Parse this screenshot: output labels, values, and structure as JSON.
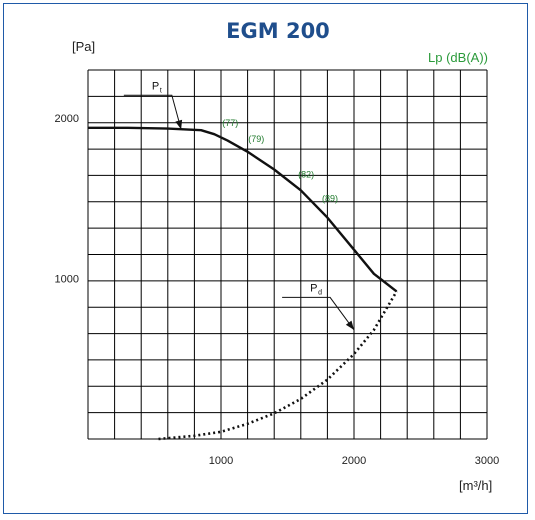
{
  "chart_data": {
    "type": "line",
    "title": "EGM 200",
    "ylabel": "[Pa]",
    "xlabel": "[m³/h]",
    "secondary_label": "Lp (dB(A))",
    "xlim": [
      0,
      3000
    ],
    "ylim": [
      0,
      2300
    ],
    "grid": true,
    "x_ticks": [
      {
        "value": 1000,
        "label": "1000"
      },
      {
        "value": 2000,
        "label": "2000"
      },
      {
        "value": 3000,
        "label": "3000"
      }
    ],
    "y_ticks": [
      {
        "value": 1000,
        "label": "1000"
      },
      {
        "value": 2000,
        "label": "2000"
      }
    ],
    "series": [
      {
        "name": "Pt",
        "style": "solid",
        "x": [
          0,
          300,
          600,
          850,
          950,
          1050,
          1200,
          1400,
          1600,
          1800,
          2000,
          2150,
          2320
        ],
        "y": [
          1940,
          1940,
          1935,
          1925,
          1900,
          1860,
          1790,
          1680,
          1550,
          1380,
          1180,
          1030,
          920
        ]
      },
      {
        "name": "Pd",
        "style": "dotted",
        "x": [
          530,
          800,
          1000,
          1200,
          1400,
          1600,
          1800,
          2000,
          2150,
          2320
        ],
        "y": [
          0,
          20,
          45,
          95,
          160,
          250,
          370,
          530,
          680,
          920
        ]
      }
    ],
    "lp_points": [
      {
        "label": "(77)",
        "x": 1070,
        "y": 1950
      },
      {
        "label": "(79)",
        "x": 1265,
        "y": 1850
      },
      {
        "label": "(82)",
        "x": 1640,
        "y": 1630
      },
      {
        "label": "(89)",
        "x": 1820,
        "y": 1480
      }
    ],
    "curve_labels": [
      {
        "main": "P",
        "sub": "t",
        "x": 480,
        "y": 2180
      },
      {
        "main": "P",
        "sub": "d",
        "x": 1670,
        "y": 920
      }
    ]
  },
  "colors": {
    "title": "#1f4e8c",
    "lp": "#2a9a3a",
    "curve": "#111111",
    "grid": "#000000",
    "frame": "#1f5aa8"
  }
}
